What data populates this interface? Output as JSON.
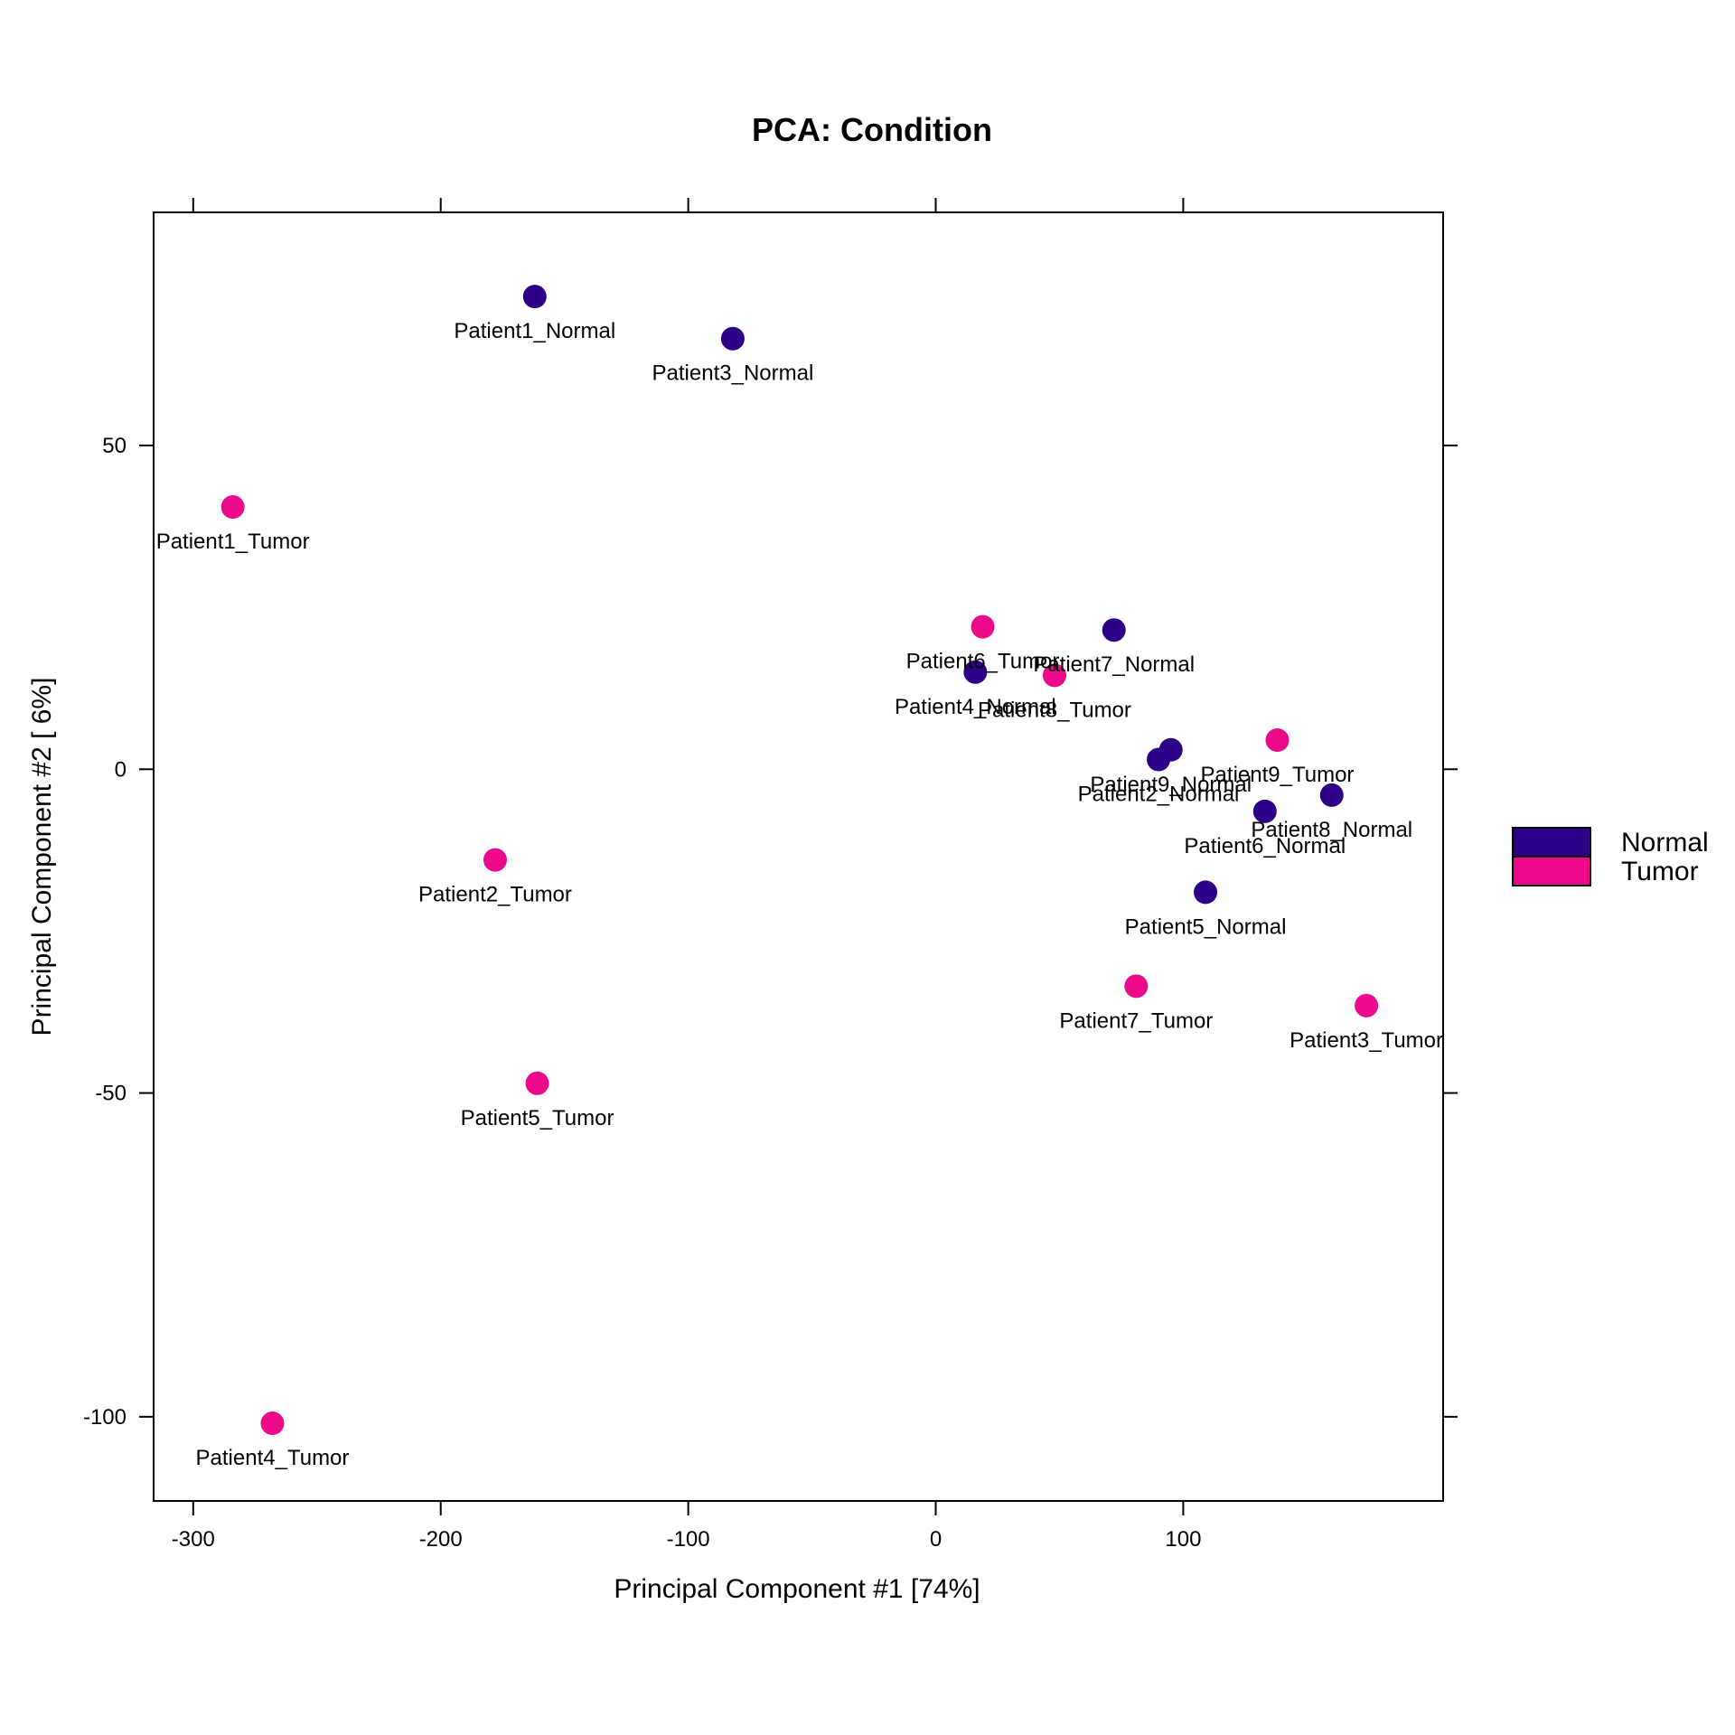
{
  "chart_data": {
    "type": "scatter",
    "title": "PCA: Condition",
    "xlabel": "Principal Component #1 [74%]",
    "ylabel": "Principal Component #2 [ 6%]",
    "xlim": [
      -316,
      205
    ],
    "ylim": [
      -113,
      86
    ],
    "x_ticks": [
      -300,
      -200,
      -100,
      0,
      100
    ],
    "y_ticks": [
      -100,
      -50,
      0,
      50
    ],
    "grid": false,
    "legend_position": "right",
    "series": [
      {
        "name": "Normal",
        "color": "#2E0087",
        "points": [
          {
            "label": "Patient1_Normal",
            "x": -162,
            "y": 73
          },
          {
            "label": "Patient3_Normal",
            "x": -82,
            "y": 66.5
          },
          {
            "label": "Patient7_Normal",
            "x": 72,
            "y": 21.5
          },
          {
            "label": "Patient4_Normal",
            "x": 16,
            "y": 15
          },
          {
            "label": "Patient9_Normal",
            "x": 95,
            "y": 3
          },
          {
            "label": "Patient2_Normal",
            "x": 90,
            "y": 1.5
          },
          {
            "label": "Patient8_Normal",
            "x": 160,
            "y": -4
          },
          {
            "label": "Patient6_Normal",
            "x": 133,
            "y": -6.5
          },
          {
            "label": "Patient5_Normal",
            "x": 109,
            "y": -19
          }
        ]
      },
      {
        "name": "Tumor",
        "color": "#EC0A8B",
        "points": [
          {
            "label": "Patient1_Tumor",
            "x": -284,
            "y": 40.5
          },
          {
            "label": "Patient6_Tumor",
            "x": 19,
            "y": 22
          },
          {
            "label": "Patient8_Tumor",
            "x": 48,
            "y": 14.5
          },
          {
            "label": "Patient9_Tumor",
            "x": 138,
            "y": 4.5
          },
          {
            "label": "Patient2_Tumor",
            "x": -178,
            "y": -14
          },
          {
            "label": "Patient7_Tumor",
            "x": 81,
            "y": -33.5
          },
          {
            "label": "Patient3_Tumor",
            "x": 174,
            "y": -36.5
          },
          {
            "label": "Patient5_Tumor",
            "x": -161,
            "y": -48.5
          },
          {
            "label": "Patient4_Tumor",
            "x": -268,
            "y": -101
          }
        ]
      }
    ]
  }
}
